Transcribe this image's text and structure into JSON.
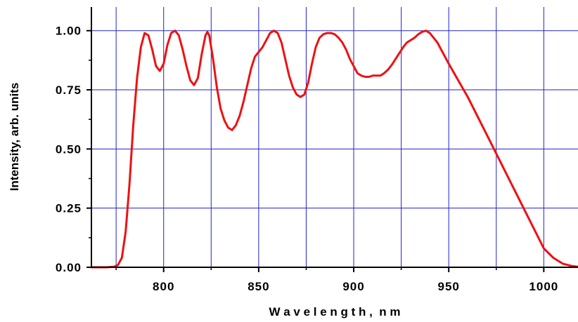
{
  "chart_data": {
    "type": "line",
    "title": "",
    "xlabel": "W a v e l e n g t h ,  n m",
    "ylabel": "Intensity, arb. units",
    "xlim": [
      762,
      1018
    ],
    "ylim": [
      0,
      1.1
    ],
    "x_ticks": [
      800,
      850,
      900,
      950,
      1000
    ],
    "x_tick_labels": [
      "800",
      "850",
      "900",
      "950",
      "1000"
    ],
    "x_minor_ticks": [
      775,
      825,
      875,
      925,
      975
    ],
    "y_ticks": [
      0,
      0.25,
      0.5,
      0.75,
      1.0
    ],
    "y_tick_labels": [
      "0.00",
      "0.25",
      "0.50",
      "0.75",
      "1.00"
    ],
    "grid": true,
    "colors": {
      "line": "#ee1111",
      "grid": "#2222cc",
      "axis": "#000000"
    },
    "series": [
      {
        "x": [
          762,
          770,
          774,
          776,
          778,
          780,
          782,
          784,
          786,
          788,
          790,
          792,
          794,
          796,
          798,
          800,
          802,
          804,
          806,
          808,
          810,
          812,
          814,
          816,
          818,
          820,
          822,
          823,
          824,
          826,
          828,
          830,
          832,
          834,
          836,
          838,
          840,
          842,
          844,
          846,
          848,
          850,
          852,
          854,
          856,
          858,
          860,
          862,
          864,
          866,
          868,
          870,
          872,
          874,
          876,
          878,
          880,
          882,
          884,
          886,
          888,
          890,
          892,
          894,
          896,
          898,
          900,
          902,
          904,
          906,
          908,
          910,
          912,
          914,
          916,
          918,
          920,
          922,
          924,
          926,
          928,
          930,
          932,
          934,
          936,
          938,
          940,
          942,
          944,
          946,
          948,
          950,
          955,
          960,
          965,
          970,
          975,
          980,
          985,
          990,
          995,
          1000,
          1005,
          1010,
          1015,
          1018
        ],
        "y": [
          0.0,
          0.0,
          0.002,
          0.01,
          0.04,
          0.15,
          0.35,
          0.6,
          0.8,
          0.93,
          0.99,
          0.98,
          0.92,
          0.85,
          0.83,
          0.86,
          0.94,
          0.99,
          1.0,
          0.98,
          0.92,
          0.85,
          0.79,
          0.77,
          0.8,
          0.9,
          0.98,
          0.995,
          0.98,
          0.88,
          0.76,
          0.67,
          0.62,
          0.59,
          0.58,
          0.6,
          0.64,
          0.7,
          0.77,
          0.84,
          0.89,
          0.91,
          0.93,
          0.96,
          0.99,
          1.0,
          0.99,
          0.95,
          0.88,
          0.81,
          0.76,
          0.73,
          0.72,
          0.73,
          0.78,
          0.86,
          0.93,
          0.97,
          0.985,
          0.99,
          0.99,
          0.985,
          0.97,
          0.95,
          0.92,
          0.88,
          0.85,
          0.82,
          0.81,
          0.805,
          0.805,
          0.81,
          0.81,
          0.81,
          0.82,
          0.835,
          0.855,
          0.88,
          0.905,
          0.93,
          0.95,
          0.96,
          0.97,
          0.985,
          0.995,
          1.0,
          0.99,
          0.97,
          0.95,
          0.92,
          0.89,
          0.86,
          0.79,
          0.72,
          0.64,
          0.56,
          0.48,
          0.4,
          0.32,
          0.24,
          0.16,
          0.08,
          0.04,
          0.015,
          0.005,
          0.002
        ]
      }
    ]
  }
}
